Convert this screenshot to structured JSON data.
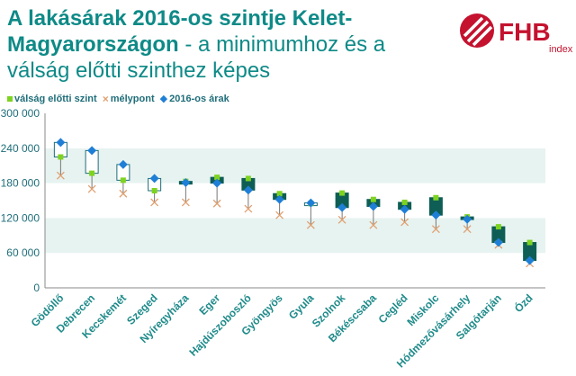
{
  "title": {
    "bold_text": "A lakásárak 2016-os szintje Kelet-Magyarországon",
    "normal_text": " - a minimumhoz és a válság előtti szinthez képes"
  },
  "logo": {
    "text": "FHB",
    "sub": "index",
    "color": "#c4122f"
  },
  "colors": {
    "title": "#0e8a87",
    "box_dark": "#0e5e55",
    "box_light_border": "#1f6e7a",
    "pre_crisis": "#7ed321",
    "minimum": "#e0a070",
    "price_2016": "#1f7fd6",
    "band": "#e7f3f1"
  },
  "chart_data": {
    "type": "box",
    "categories": [
      "Gödöllő",
      "Debrecen",
      "Kecskemét",
      "Szeged",
      "Nyíregyháza",
      "Eger",
      "Hajdúszoboszló",
      "Gyöngyös",
      "Gyula",
      "Szolnok",
      "Békéscsaba",
      "Cegléd",
      "Miskolc",
      "Hódmezővásárhely",
      "Salgótarján",
      "Ózd"
    ],
    "series": [
      {
        "name": "válság előtti szint",
        "marker": "square",
        "values": [
          225000,
          197000,
          185000,
          167000,
          183000,
          190000,
          188000,
          162000,
          145000,
          163000,
          152000,
          147000,
          155000,
          122000,
          105000,
          78000
        ]
      },
      {
        "name": "mélypont",
        "marker": "x",
        "values": [
          193000,
          170000,
          162000,
          147000,
          147000,
          145000,
          136000,
          125000,
          108000,
          117000,
          108000,
          113000,
          101000,
          101000,
          74000,
          42000
        ]
      },
      {
        "name": "2016-os árak",
        "marker": "diamond",
        "values": [
          250000,
          236000,
          212000,
          188000,
          181000,
          180000,
          168000,
          152000,
          146000,
          138000,
          140000,
          135000,
          125000,
          118000,
          78000,
          47000
        ]
      }
    ],
    "yticks": [
      "0",
      "60 000",
      "120 000",
      "180 000",
      "240 000",
      "300 000"
    ],
    "ylim": [
      0,
      300000
    ],
    "grid": "horizontal bands"
  }
}
